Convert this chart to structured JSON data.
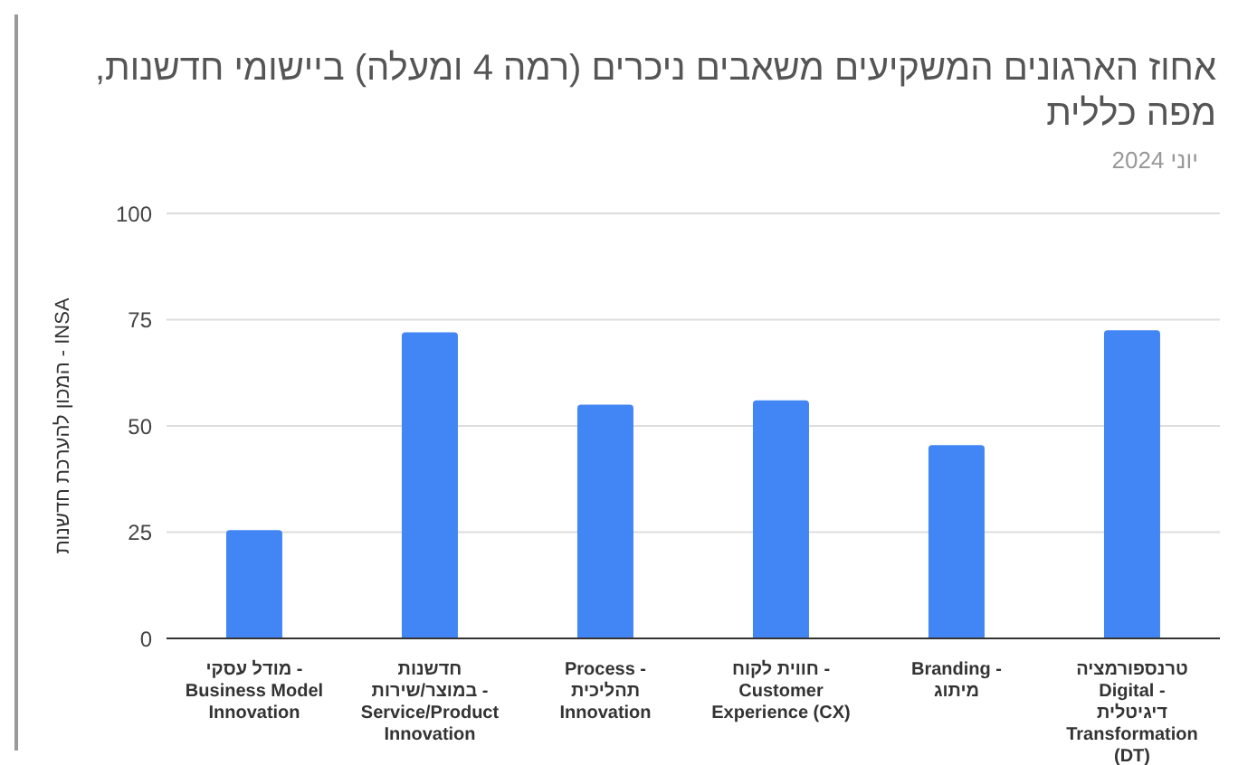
{
  "chart_data": {
    "type": "bar",
    "title": "אחוז הארגונים המשקיעים משאבים ניכרים (רמה 4 ומעלה) ביישומי חדשנות, מפה כללית",
    "subtitle": "יוני 2024",
    "ylabel": "המכון להערכת חדשנות - INSA",
    "categories": [
      "מודל עסקי - Business Model Innovation",
      "חדשנות במוצר/שירות - Service/Product Innovation",
      "Process - תהליכית Innovation",
      "חווית לקוח - Customer Experience (CX)",
      "Branding - מיתוג",
      "טרנספורמציה Digital - דיגיטלית Transformation (DT)"
    ],
    "values": [
      25.5,
      72,
      55,
      56,
      45.5,
      72.5
    ],
    "color": "#4285f4",
    "ylim": [
      0,
      100
    ],
    "yticks": [
      0,
      25,
      50,
      75,
      100
    ],
    "grid": "y",
    "legend": false
  }
}
